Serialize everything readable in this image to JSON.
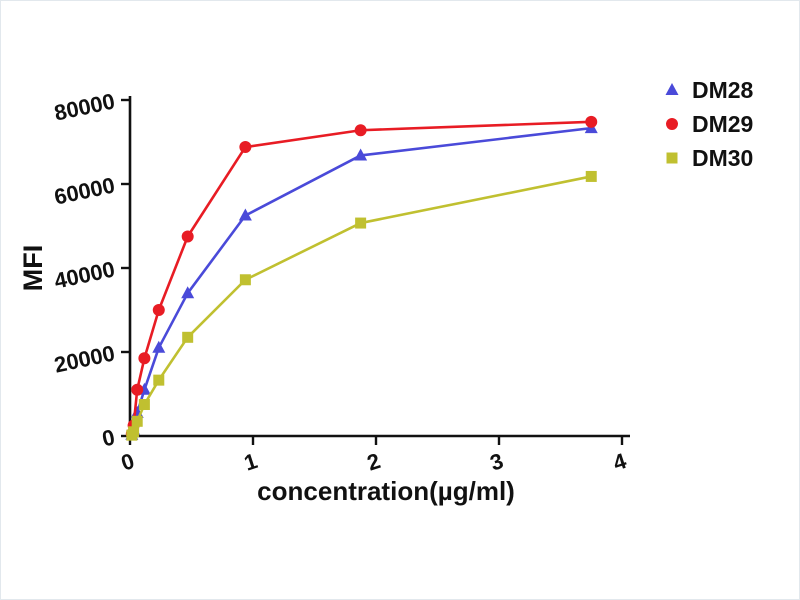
{
  "page": {
    "background": "#ffffff",
    "border_color": "#e2e8ed",
    "text_color": "#111111"
  },
  "chart_data": {
    "type": "line",
    "title": "",
    "xlabel": "concentration(µg/ml)",
    "ylabel": "MFI",
    "xlim": [
      0,
      4
    ],
    "ylim": [
      0,
      80000
    ],
    "x_ticks": [
      0,
      1,
      2,
      3,
      4
    ],
    "y_ticks": [
      0,
      20000,
      40000,
      60000,
      80000
    ],
    "grid": false,
    "legend_position": "top-right",
    "x": [
      0.0146,
      0.0293,
      0.0586,
      0.117,
      0.234,
      0.469,
      0.938,
      1.875,
      3.75
    ],
    "series": [
      {
        "name": "DM28",
        "marker": "triangle",
        "color": "#4a4ad9",
        "values": [
          300,
          1500,
          5500,
          11000,
          21000,
          34000,
          52500,
          66800,
          73300
        ]
      },
      {
        "name": "DM29",
        "marker": "circle",
        "color": "#e81c24",
        "values": [
          500,
          2500,
          11000,
          18500,
          30000,
          47500,
          68800,
          72800,
          74800
        ]
      },
      {
        "name": "DM30",
        "marker": "square",
        "color": "#c0c030",
        "values": [
          200,
          1000,
          3500,
          7500,
          13300,
          23500,
          37200,
          50700,
          61800
        ]
      }
    ]
  }
}
